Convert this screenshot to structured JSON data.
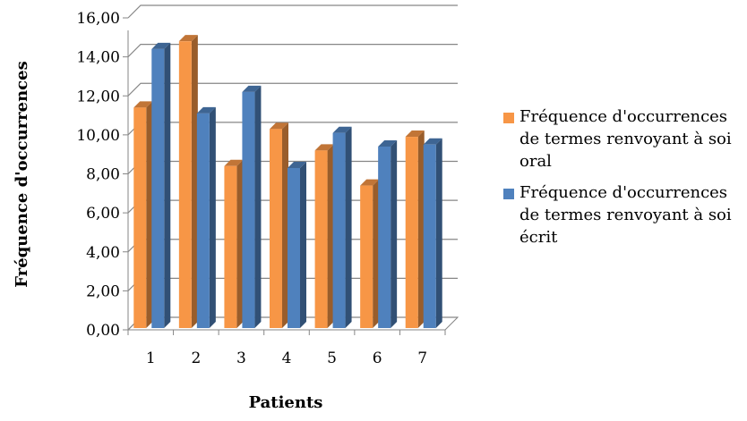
{
  "chart_data": {
    "type": "bar",
    "style": "3d-clustered-column",
    "categories": [
      "1",
      "2",
      "3",
      "4",
      "5",
      "6",
      "7"
    ],
    "series": [
      {
        "name": "Fréquence d'occurrences de termes renvoyant à soi oral",
        "color": "#F79646",
        "values": [
          11.4,
          14.8,
          8.4,
          10.3,
          9.2,
          7.4,
          9.9
        ]
      },
      {
        "name": "Fréquence d'occurrences de termes renvoyant à soi écrit",
        "color": "#4F81BD",
        "values": [
          14.4,
          11.1,
          12.2,
          8.3,
          10.1,
          9.4,
          9.5
        ]
      }
    ],
    "ylim": [
      0,
      16
    ],
    "yticks": [
      "0,00",
      "2,00",
      "4,00",
      "6,00",
      "8,00",
      "10,00",
      "12,00",
      "14,00",
      "16,00"
    ],
    "xlabel": "Patients",
    "ylabel": "Fréquence d'occurrences",
    "grid": true,
    "legend_position": "right"
  }
}
